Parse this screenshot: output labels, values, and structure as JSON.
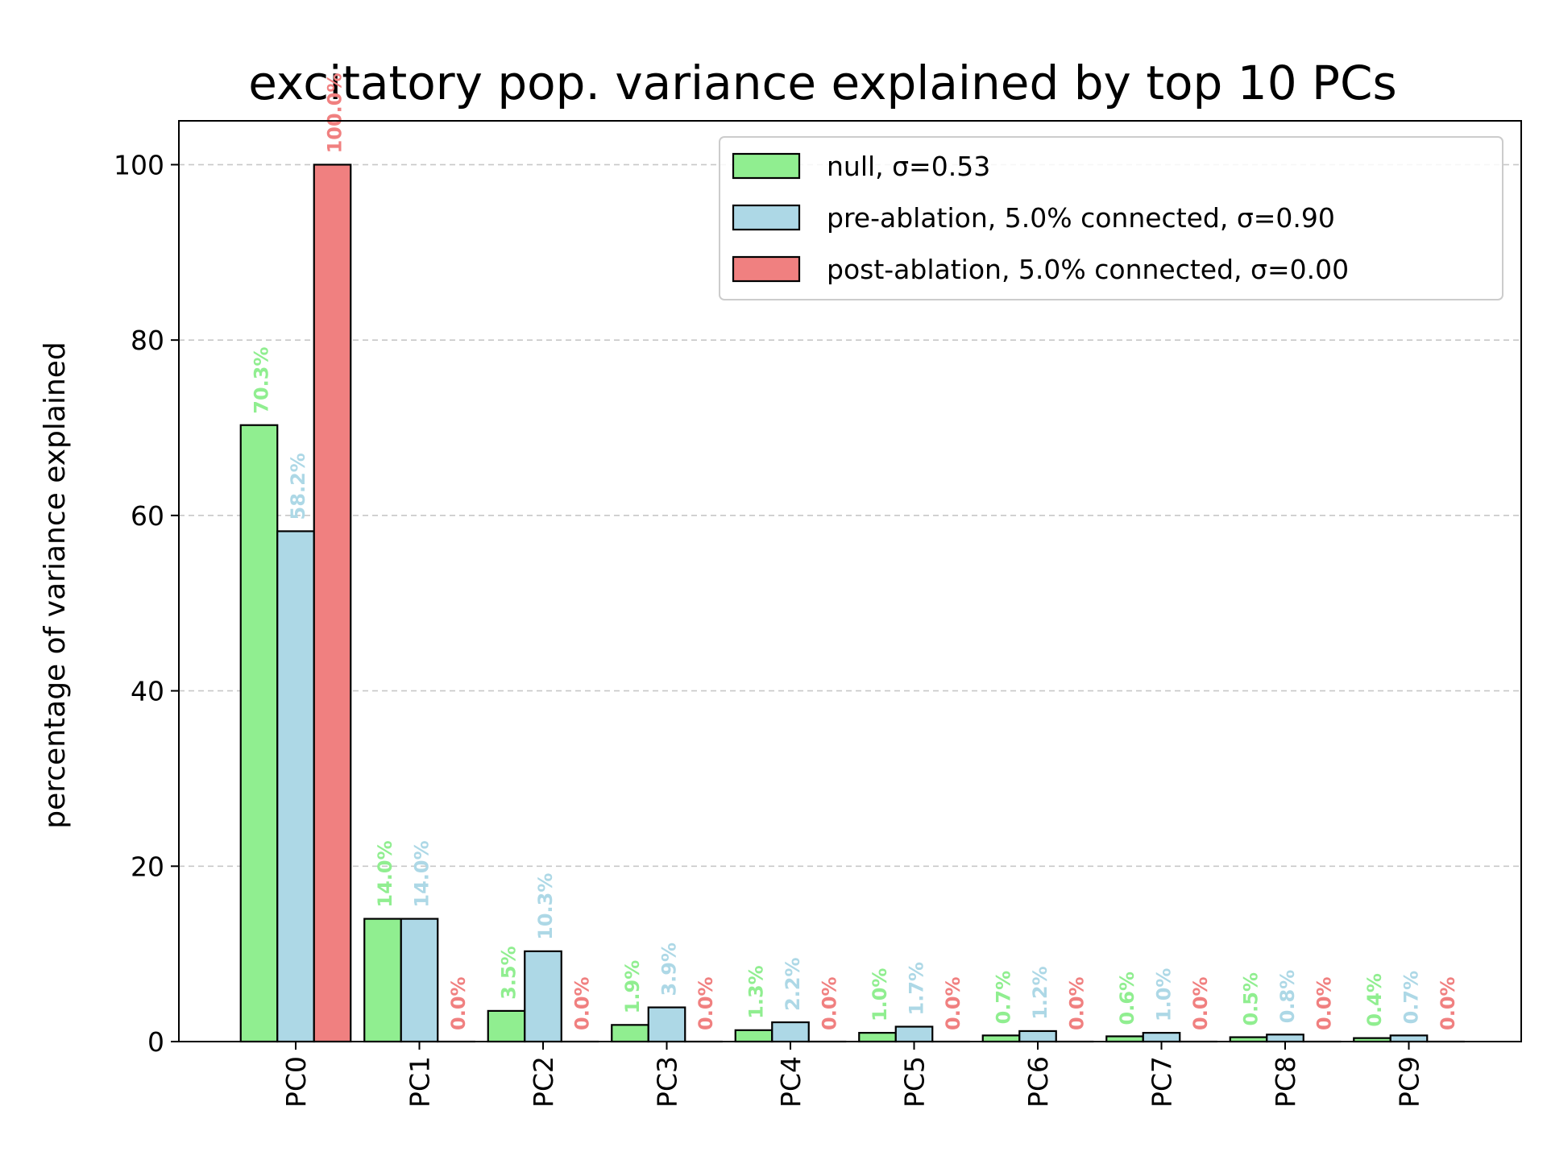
{
  "chart_data": {
    "type": "bar",
    "title": "excitatory pop. variance explained by top 10 PCs",
    "xlabel": "",
    "ylabel": "percentage of variance explained",
    "ylim": [
      0,
      105
    ],
    "yticks": [
      "0",
      "20",
      "40",
      "60",
      "80",
      "100"
    ],
    "categories": [
      "PC0",
      "PC1",
      "PC2",
      "PC3",
      "PC4",
      "PC5",
      "PC6",
      "PC7",
      "PC8",
      "PC9"
    ],
    "grid": "y-dashed",
    "legend_position": "top-right",
    "series": [
      {
        "name": "null, σ=0.53",
        "color": "#90ee90",
        "values": [
          70.3,
          14.0,
          3.5,
          1.9,
          1.3,
          1.0,
          0.7,
          0.6,
          0.5,
          0.4
        ],
        "labels": [
          "70.3%",
          "14.0%",
          "3.5%",
          "1.9%",
          "1.3%",
          "1.0%",
          "0.7%",
          "0.6%",
          "0.5%",
          "0.4%"
        ]
      },
      {
        "name": "pre-ablation, 5.0% connected, σ=0.90",
        "color": "#add8e6",
        "values": [
          58.2,
          14.0,
          10.3,
          3.9,
          2.2,
          1.7,
          1.2,
          1.0,
          0.8,
          0.7
        ],
        "labels": [
          "58.2%",
          "14.0%",
          "10.3%",
          "3.9%",
          "2.2%",
          "1.7%",
          "1.2%",
          "1.0%",
          "0.8%",
          "0.7%"
        ]
      },
      {
        "name": "post-ablation, 5.0% connected, σ=0.00",
        "color": "#f08080",
        "values": [
          100.0,
          0.0,
          0.0,
          0.0,
          0.0,
          0.0,
          0.0,
          0.0,
          0.0,
          0.0
        ],
        "labels": [
          "100.0%",
          "0.0%",
          "0.0%",
          "0.0%",
          "0.0%",
          "0.0%",
          "0.0%",
          "0.0%",
          "0.0%",
          "0.0%"
        ]
      }
    ]
  }
}
